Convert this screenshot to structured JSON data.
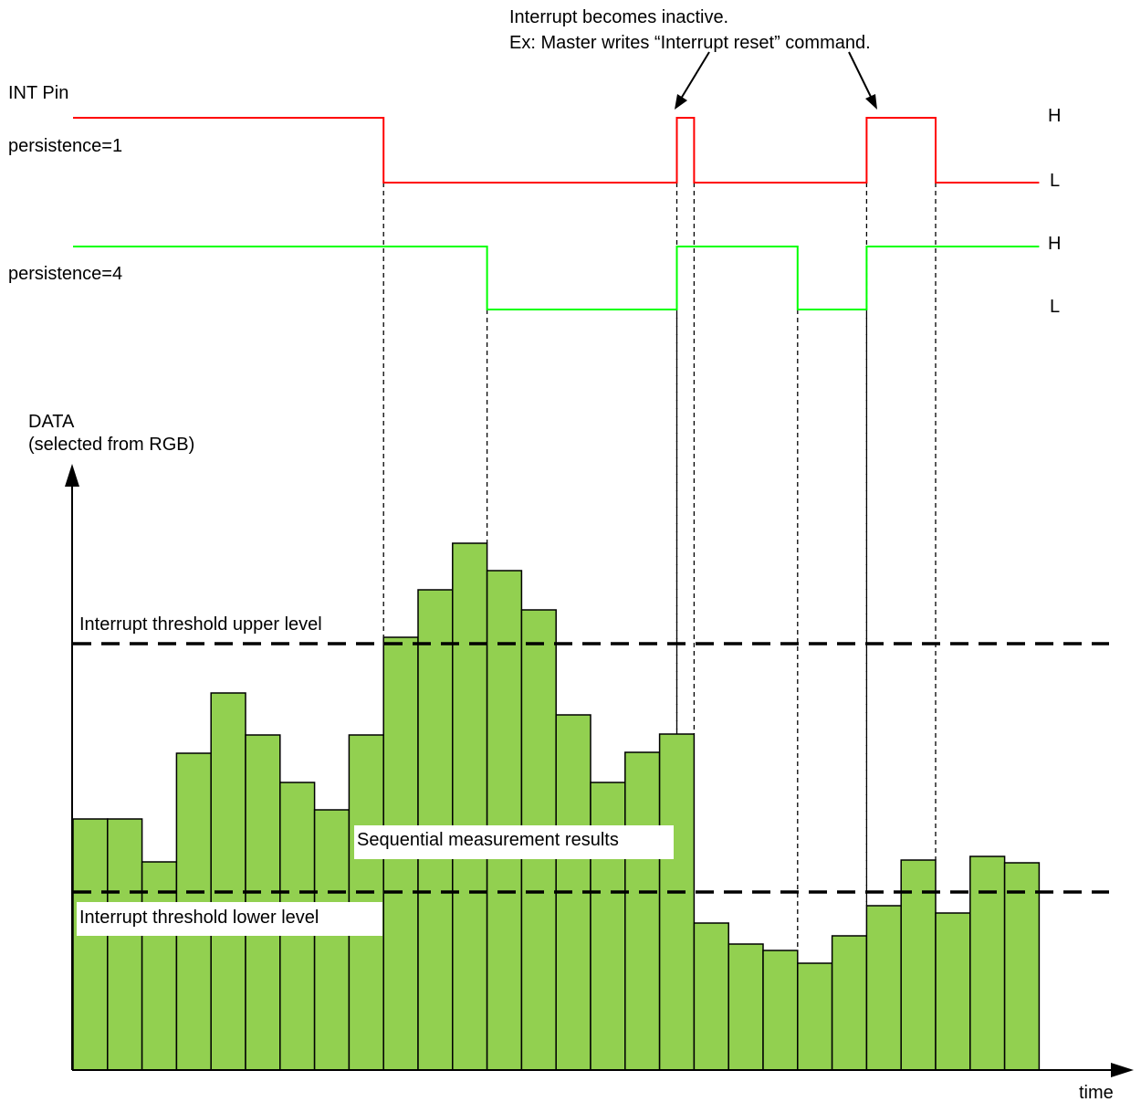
{
  "title": "Interrupt becomes inactive.",
  "subtitle": "Ex: Master writes “Interrupt reset” command.",
  "labels": {
    "int_pin": "INT Pin",
    "persistence_1": "persistence=1",
    "persistence_4": "persistence=4",
    "high": "H",
    "low": "L",
    "y_axis_line1": "DATA",
    "y_axis_line2": "(selected from RGB)",
    "x_axis": "time",
    "upper_threshold": "Interrupt threshold upper level",
    "lower_threshold": "Interrupt threshold lower level",
    "bars_label": "Sequential measurement results"
  },
  "colors": {
    "bar_fill": "#92d050",
    "persistence_1_signal": "#ff0000",
    "persistence_4_signal": "#00ff00",
    "outline": "#000000"
  },
  "chart_data": {
    "type": "bar",
    "values": [
      275,
      275,
      228,
      347,
      413,
      367,
      315,
      285,
      367,
      474,
      526,
      577,
      547,
      504,
      389,
      315,
      348,
      368,
      161,
      138,
      131,
      117,
      147,
      180,
      230,
      172,
      234,
      227
    ],
    "upper_threshold": 467,
    "lower_threshold": 195,
    "signals": {
      "persistence_1": {
        "low_intervals": [
          [
            9,
            17.5
          ],
          [
            18,
            23
          ],
          [
            25,
            28
          ]
        ]
      },
      "persistence_4": {
        "low_intervals": [
          [
            12,
            17.5
          ],
          [
            21,
            23
          ]
        ]
      }
    }
  }
}
